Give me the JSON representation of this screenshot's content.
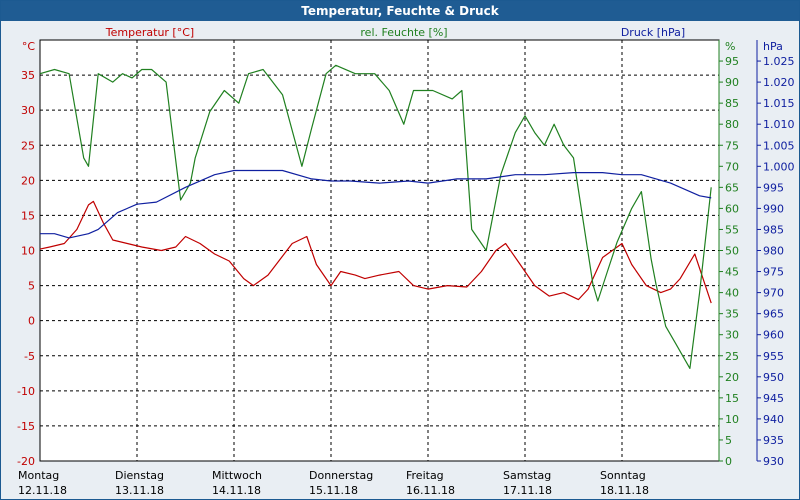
{
  "chart_data": {
    "type": "line",
    "title": "Temperatur, Feuchte & Druck",
    "axes": {
      "temperature": {
        "label": "Temperatur [°C]",
        "unit": "°C",
        "min": -20,
        "max": 40,
        "ticks": [
          35,
          30,
          25,
          20,
          15,
          10,
          5,
          0,
          -5,
          -10,
          -15,
          -20
        ]
      },
      "humidity": {
        "label": "rel. Feuchte [%]",
        "unit": "%",
        "min": 0,
        "max": 100,
        "ticks": [
          95,
          90,
          85,
          80,
          75,
          70,
          65,
          60,
          55,
          50,
          45,
          40,
          35,
          30,
          25,
          20,
          15,
          10,
          5,
          0
        ]
      },
      "pressure": {
        "label": "Druck [hPa]",
        "unit": "hPa",
        "min": 930,
        "max": 1030,
        "ticks": [
          "1.025",
          "1.020",
          "1.015",
          "1.010",
          "1.005",
          "1.000",
          "995",
          "990",
          "985",
          "980",
          "975",
          "970",
          "965",
          "960",
          "955",
          "950",
          "945",
          "940",
          "935",
          "930"
        ]
      }
    },
    "x_range": [
      0,
      7
    ],
    "x_labels": [
      {
        "day": "Montag",
        "date": "12.11.18"
      },
      {
        "day": "Dienstag",
        "date": "13.11.18"
      },
      {
        "day": "Mittwoch",
        "date": "14.11.18"
      },
      {
        "day": "Donnerstag",
        "date": "15.11.18"
      },
      {
        "day": "Freitag",
        "date": "16.11.18"
      },
      {
        "day": "Samstag",
        "date": "17.11.18"
      },
      {
        "day": "Sonntag",
        "date": "18.11.18"
      }
    ],
    "series": [
      {
        "name": "Temperatur",
        "axis": "temperature",
        "color": "#c00000",
        "x": [
          0,
          0.1,
          0.25,
          0.38,
          0.5,
          0.55,
          0.65,
          0.75,
          0.9,
          1.05,
          1.25,
          1.4,
          1.5,
          1.65,
          1.8,
          1.95,
          2.1,
          2.2,
          2.35,
          2.6,
          2.75,
          2.85,
          3,
          3.1,
          3.25,
          3.35,
          3.5,
          3.7,
          3.85,
          4,
          4.2,
          4.4,
          4.55,
          4.7,
          4.8,
          4.95,
          5.1,
          5.25,
          5.4,
          5.55,
          5.65,
          5.8,
          6,
          6.1,
          6.25,
          6.4,
          6.5,
          6.6,
          6.75,
          6.92
        ],
        "y": [
          10.2,
          10.5,
          11,
          13,
          16.5,
          17,
          14,
          11.5,
          11,
          10.5,
          10,
          10.5,
          12,
          11,
          9.5,
          8.5,
          6,
          5,
          6.5,
          11,
          12,
          8,
          5,
          7,
          6.5,
          6,
          6.5,
          7,
          5,
          4.5,
          5,
          4.8,
          7,
          10,
          11,
          8,
          5,
          3.5,
          4,
          3,
          4.5,
          9,
          11,
          8,
          5,
          4,
          4.5,
          6,
          9.5,
          2.5
        ]
      },
      {
        "name": "rel. Feuchte",
        "axis": "humidity",
        "color": "#208020",
        "x": [
          0,
          0.15,
          0.3,
          0.45,
          0.5,
          0.6,
          0.75,
          0.85,
          0.95,
          1.05,
          1.15,
          1.3,
          1.45,
          1.55,
          1.6,
          1.75,
          1.9,
          2.05,
          2.15,
          2.3,
          2.5,
          2.7,
          2.8,
          2.95,
          3.05,
          3.25,
          3.45,
          3.6,
          3.75,
          3.85,
          4.05,
          4.25,
          4.35,
          4.45,
          4.6,
          4.75,
          4.9,
          5,
          5.1,
          5.2,
          5.3,
          5.4,
          5.5,
          5.7,
          5.75,
          5.85,
          5.95,
          6.1,
          6.2,
          6.3,
          6.35,
          6.45,
          6.55,
          6.7,
          6.8,
          6.92
        ],
        "y": [
          92,
          93,
          92,
          72,
          70,
          92,
          90,
          92,
          91,
          93,
          93,
          90,
          62,
          66,
          72,
          83,
          88,
          85,
          92,
          93,
          87,
          70,
          79,
          92,
          94,
          92,
          92,
          88,
          80,
          88,
          88,
          86,
          88,
          55,
          50,
          68,
          78,
          82,
          78,
          75,
          80,
          75,
          72,
          42,
          38,
          45,
          52,
          60,
          64,
          48,
          42,
          32,
          28,
          22,
          40,
          65
        ]
      },
      {
        "name": "Druck",
        "axis": "pressure",
        "color": "#1020a0",
        "x": [
          0,
          0.15,
          0.3,
          0.5,
          0.6,
          0.8,
          1,
          1.2,
          1.5,
          1.8,
          2,
          2.2,
          2.5,
          2.8,
          3,
          3.2,
          3.5,
          3.8,
          4,
          4.3,
          4.6,
          4.9,
          5.2,
          5.5,
          5.8,
          6,
          6.2,
          6.5,
          6.8,
          6.92
        ],
        "y": [
          984,
          984,
          983,
          984,
          985,
          989,
          991,
          991.5,
          995,
          998,
          999,
          999,
          999,
          997,
          996.5,
          996.5,
          996,
          996.5,
          996,
          997,
          997,
          998,
          998,
          998.5,
          998.5,
          998,
          998,
          996,
          993,
          992.5
        ]
      }
    ]
  }
}
